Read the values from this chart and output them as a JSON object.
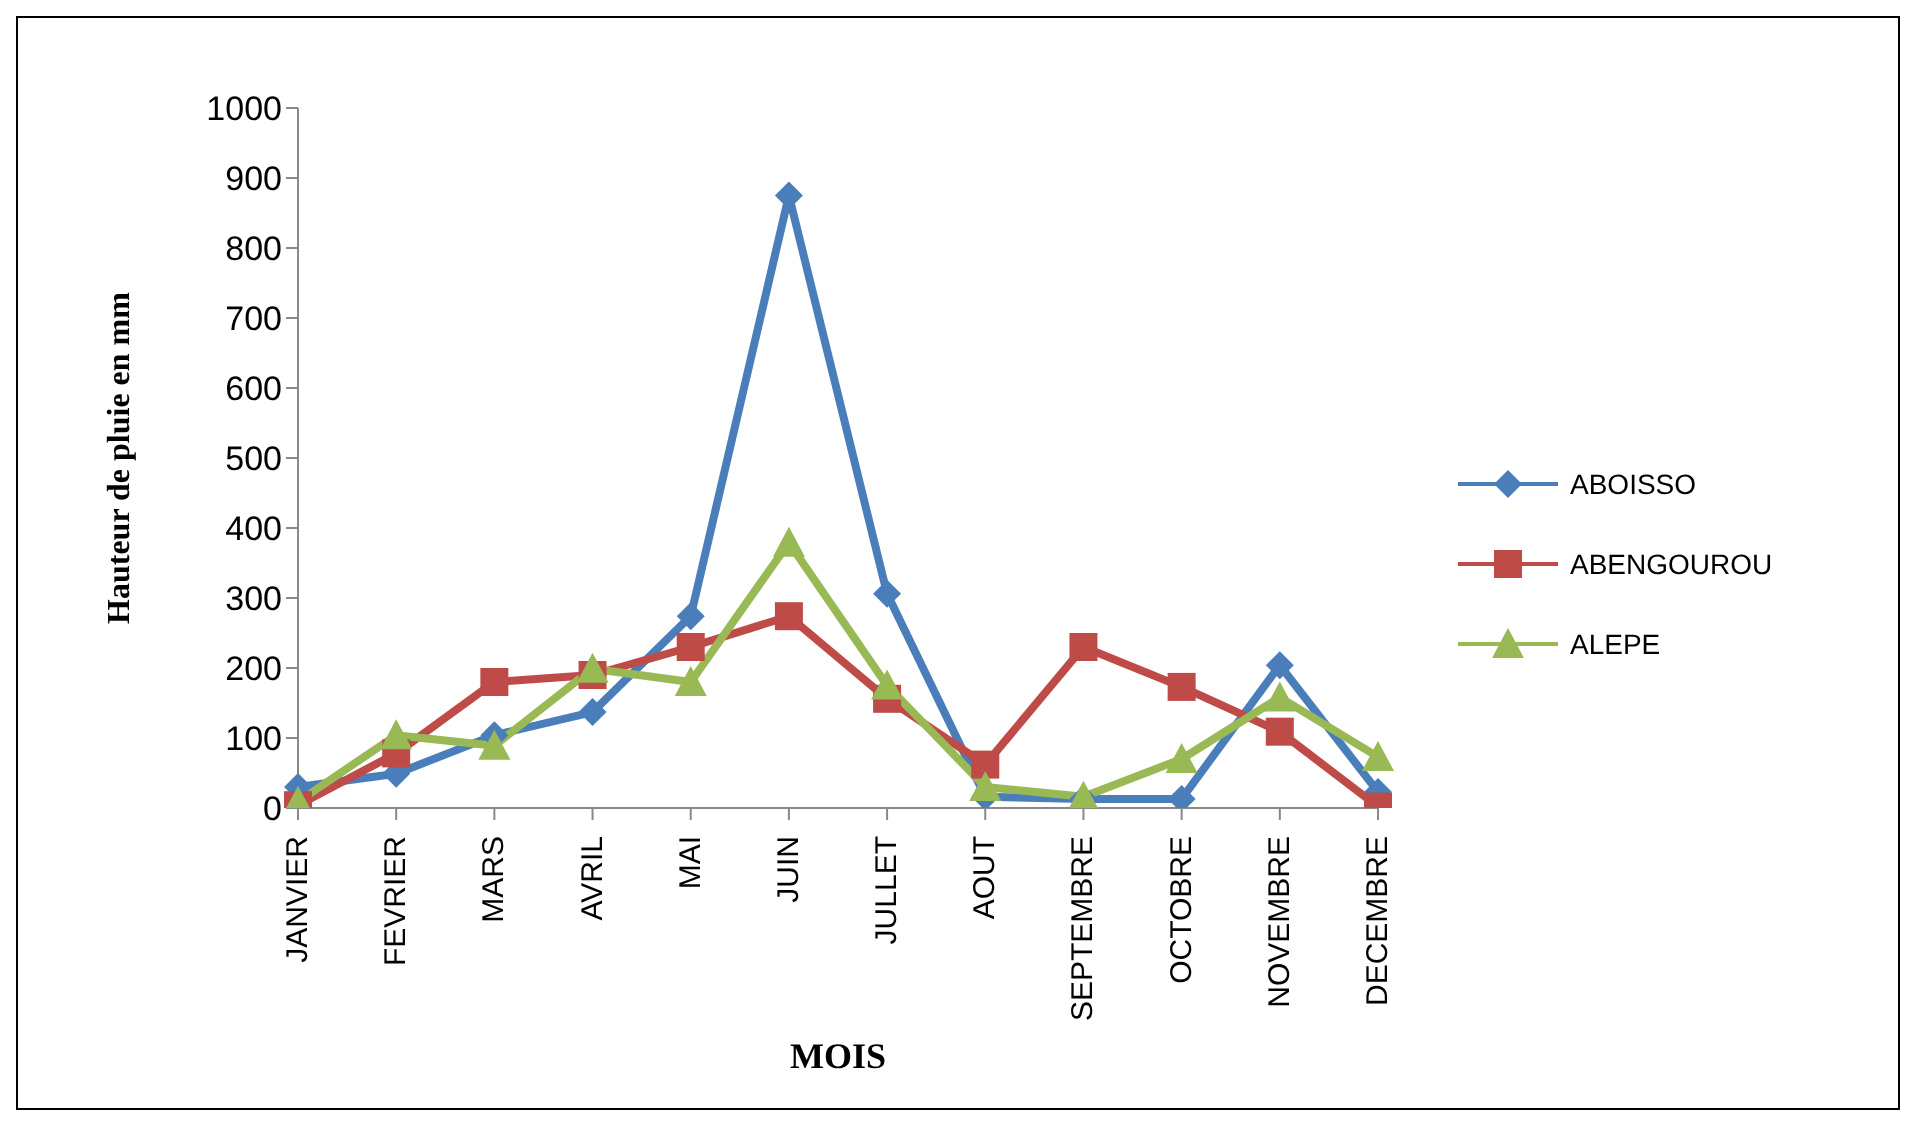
{
  "chart_data": {
    "type": "line",
    "xlabel": "MOIS",
    "ylabel": "Hauteur de pluie en mm",
    "categories": [
      "JANVIER",
      "FEVRIER",
      "MARS",
      "AVRIL",
      "MAI",
      "JUIN",
      "JULLET",
      "AOUT",
      "SEPTEMBRE",
      "OCTOBRE",
      "NOVEMBRE",
      "DECEMBRE"
    ],
    "series": [
      {
        "name": "ABOISSO",
        "color": "#4a7ebb",
        "marker": "diamond",
        "values": [
          30,
          49,
          104,
          137,
          274,
          875,
          306,
          16,
          13,
          13,
          204,
          23
        ]
      },
      {
        "name": "ABENGOUROU",
        "color": "#be4b48",
        "marker": "square",
        "values": [
          4,
          78,
          180,
          190,
          230,
          274,
          156,
          62,
          230,
          173,
          109,
          2
        ]
      },
      {
        "name": "ALEPE",
        "color": "#98b954",
        "marker": "triangle",
        "values": [
          9,
          104,
          89,
          199,
          180,
          379,
          175,
          30,
          16,
          70,
          158,
          73
        ]
      }
    ],
    "ylim": [
      0,
      1000
    ],
    "yticks": [
      0,
      100,
      200,
      300,
      400,
      500,
      600,
      700,
      800,
      900,
      1000
    ],
    "grid": false,
    "legend": "right",
    "line_style": "solid"
  }
}
